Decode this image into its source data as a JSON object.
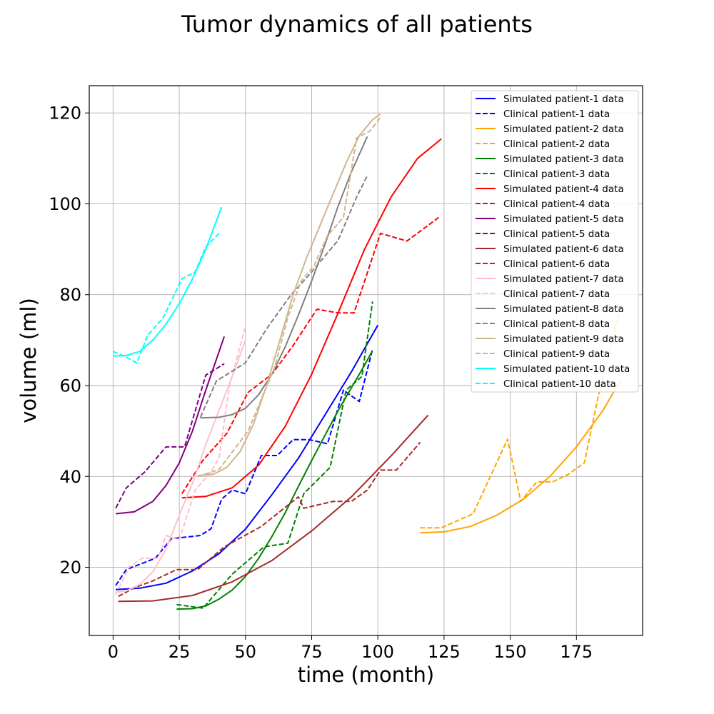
{
  "chart_data": {
    "type": "line",
    "title": "Tumor dynamics of all patients",
    "xlabel": "time (month)",
    "ylabel": "volume (ml)",
    "xlim": [
      -9,
      200
    ],
    "ylim": [
      5,
      126
    ],
    "xticks": [
      0,
      25,
      50,
      75,
      100,
      125,
      150,
      175
    ],
    "yticks": [
      20,
      40,
      60,
      80,
      100,
      120
    ],
    "grid": true,
    "legend_position": "top-right",
    "series": [
      {
        "name": "Simulated patient-1 data",
        "color": "#0000ff",
        "dash": false,
        "x": [
          1,
          10,
          20,
          30,
          40,
          50,
          60,
          70,
          80,
          90,
          100
        ],
        "y": [
          15.1,
          15.4,
          16.5,
          19.2,
          23.0,
          28.4,
          36.0,
          44.0,
          53.5,
          63.0,
          73.3
        ]
      },
      {
        "name": "Clinical patient-1 data",
        "color": "#0000ff",
        "dash": true,
        "x": [
          1,
          5,
          16,
          22,
          33,
          37,
          41,
          45,
          50,
          56,
          62,
          68,
          74,
          81,
          87,
          93,
          98
        ],
        "y": [
          16,
          19.5,
          22,
          26.3,
          27,
          28.5,
          35,
          37,
          36.2,
          44.6,
          44.6,
          48.1,
          48.1,
          47.2,
          59,
          56.5,
          68
        ]
      },
      {
        "name": "Simulated patient-2 data",
        "color": "#ffa500",
        "dash": false,
        "x": [
          116,
          125,
          135,
          145,
          155,
          165,
          175,
          185,
          192
        ],
        "y": [
          27.6,
          27.8,
          29.0,
          31.5,
          35.0,
          40.0,
          46.5,
          54.5,
          61.5
        ]
      },
      {
        "name": "Clinical patient-2 data",
        "color": "#ffa500",
        "dash": true,
        "x": [
          116,
          124,
          136,
          149,
          154,
          160,
          166,
          172,
          178,
          183,
          192
        ],
        "y": [
          28.7,
          28.7,
          31.8,
          48.2,
          34.5,
          38.8,
          38.8,
          40.5,
          43,
          57,
          78
        ]
      },
      {
        "name": "Simulated patient-3 data",
        "color": "#008000",
        "dash": false,
        "x": [
          24,
          30,
          35,
          40,
          45,
          50,
          55,
          60,
          65,
          70,
          75,
          80,
          85,
          90,
          95,
          98
        ],
        "y": [
          10.8,
          10.9,
          11.5,
          13.0,
          15.0,
          18.0,
          22.0,
          26.8,
          32.0,
          37.8,
          43.5,
          49.0,
          54.5,
          59.5,
          64.5,
          67.7
        ]
      },
      {
        "name": "Clinical patient-3 data",
        "color": "#008000",
        "dash": true,
        "x": [
          24,
          34,
          45,
          57,
          66,
          72,
          82,
          88,
          94,
          98
        ],
        "y": [
          11.8,
          11,
          18.5,
          24.5,
          25.3,
          36.2,
          42,
          59,
          62,
          78.5
        ]
      },
      {
        "name": "Simulated patient-4 data",
        "color": "#ff0000",
        "dash": false,
        "x": [
          26,
          35,
          45,
          55,
          65,
          75,
          85,
          95,
          105,
          115,
          124
        ],
        "y": [
          35.3,
          35.6,
          37.5,
          42.5,
          51.0,
          62.5,
          76.0,
          90.0,
          101.5,
          110.0,
          114.3
        ]
      },
      {
        "name": "Clinical patient-4 data",
        "color": "#ff0000",
        "dash": true,
        "x": [
          26,
          34,
          43,
          51,
          60,
          68,
          77,
          85,
          91,
          101,
          111,
          123
        ],
        "y": [
          36.2,
          43.6,
          49.5,
          58.5,
          62.5,
          68.8,
          76.8,
          76,
          76,
          93.5,
          91.8,
          97
        ]
      },
      {
        "name": "Simulated patient-5 data",
        "color": "#800080",
        "dash": false,
        "x": [
          1,
          8,
          15,
          20,
          25,
          30,
          35,
          42
        ],
        "y": [
          31.8,
          32.2,
          34.5,
          38.0,
          43.0,
          50.0,
          59.0,
          70.8
        ]
      },
      {
        "name": "Clinical patient-5 data",
        "color": "#800080",
        "dash": true,
        "x": [
          1,
          5,
          12,
          20,
          27,
          35,
          42
        ],
        "y": [
          33,
          37.5,
          41,
          46.5,
          46.5,
          62.3,
          64.8
        ]
      },
      {
        "name": "Simulated patient-6 data",
        "color": "#a52a2a",
        "dash": false,
        "x": [
          2,
          15,
          30,
          45,
          60,
          75,
          90,
          105,
          119
        ],
        "y": [
          12.5,
          12.6,
          13.8,
          16.8,
          21.5,
          28.0,
          35.5,
          44.5,
          53.5
        ]
      },
      {
        "name": "Clinical patient-6 data",
        "color": "#a52a2a",
        "dash": true,
        "x": [
          2,
          8,
          15,
          24,
          32,
          42,
          56,
          70,
          72,
          83,
          90,
          96,
          101,
          107,
          116
        ],
        "y": [
          13.6,
          15.5,
          17,
          19.5,
          19.5,
          24.5,
          29,
          35.5,
          33,
          34.5,
          34.5,
          37,
          41.4,
          41.4,
          47.5
        ]
      },
      {
        "name": "Simulated patient-7 data",
        "color": "#ffc0cb",
        "dash": false,
        "x": [
          1,
          5,
          10,
          15,
          20,
          25,
          30,
          35,
          40,
          45,
          50
        ],
        "y": [
          14.5,
          14.8,
          16.2,
          19.0,
          24.0,
          31.5,
          38.5,
          47.0,
          54.5,
          62.0,
          70.0
        ]
      },
      {
        "name": "Clinical patient-7 data",
        "color": "#ffc0cb",
        "dash": true,
        "x": [
          1,
          6,
          11,
          17,
          20,
          25,
          31,
          37,
          40,
          44,
          50
        ],
        "y": [
          14,
          20,
          22,
          22,
          27,
          26,
          37,
          41,
          44,
          60,
          73
        ]
      },
      {
        "name": "Simulated patient-8 data",
        "color": "#808080",
        "dash": false,
        "x": [
          33,
          40,
          45,
          50,
          55,
          60,
          65,
          70,
          75,
          80,
          85,
          90,
          96
        ],
        "y": [
          52.9,
          53.0,
          53.6,
          55.0,
          58.0,
          62.5,
          68.5,
          75.5,
          83.0,
          91.0,
          99.5,
          107.0,
          114.8
        ]
      },
      {
        "name": "Clinical patient-8 data",
        "color": "#808080",
        "dash": true,
        "x": [
          33,
          39,
          50,
          58,
          67,
          75,
          85,
          92,
          96
        ],
        "y": [
          53,
          61,
          65,
          72.5,
          79.8,
          85,
          92,
          101.5,
          106.2
        ]
      },
      {
        "name": "Simulated patient-9 data",
        "color": "#d2b48c",
        "dash": false,
        "x": [
          32,
          38,
          43,
          48,
          53,
          58,
          63,
          68,
          73,
          78,
          83,
          88,
          93,
          98,
          101
        ],
        "y": [
          40.2,
          40.5,
          42.0,
          45.5,
          51.5,
          60.0,
          70.0,
          80.0,
          88.0,
          95.0,
          102.0,
          109.0,
          115.0,
          118.5,
          119.8
        ]
      },
      {
        "name": "Clinical patient-9 data",
        "color": "#d2b48c",
        "dash": true,
        "x": [
          32,
          40,
          51,
          56,
          61,
          66,
          71,
          76,
          81,
          87,
          92,
          97,
          101
        ],
        "y": [
          40,
          41.5,
          50,
          57,
          64,
          75,
          83,
          86.5,
          93,
          97,
          114.5,
          116,
          119
        ]
      },
      {
        "name": "Simulated patient-10 data",
        "color": "#00ffff",
        "dash": false,
        "x": [
          0,
          5,
          10,
          15,
          20,
          25,
          30,
          35,
          41
        ],
        "y": [
          66.5,
          66.6,
          67.5,
          70.0,
          73.5,
          78.0,
          83.5,
          90.0,
          99.3
        ]
      },
      {
        "name": "Clinical patient-10 data",
        "color": "#00ffff",
        "dash": true,
        "x": [
          0,
          4,
          9,
          13,
          19,
          26,
          31,
          35,
          40
        ],
        "y": [
          67.5,
          66.5,
          65,
          71,
          75,
          83.5,
          85,
          90.5,
          93.5
        ]
      }
    ]
  }
}
